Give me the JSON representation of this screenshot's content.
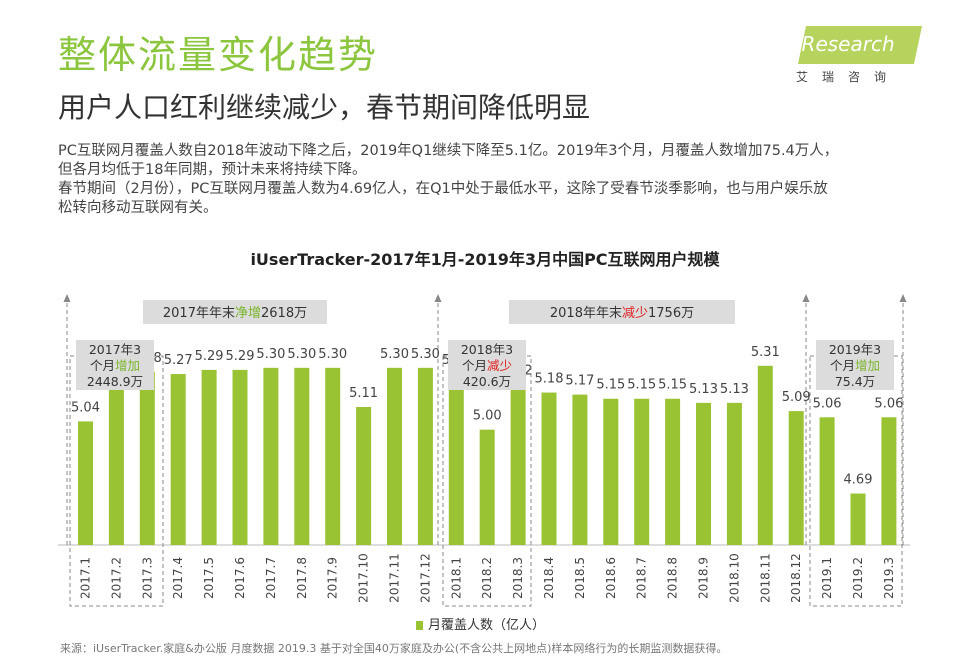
{
  "header": {
    "title": "整体流量变化趋势",
    "subtitle": "用户人口红利继续减少，春节期间降低明显",
    "description": [
      "PC互联网月覆盖人数自2018年波动下降之后，2019年Q1继续下降至5.1亿。2019年3个月，月覆盖人数增加75.4万人，",
      "但各月均低于18年同期，预计未来将持续下降。",
      "春节期间（2月份），PC互联网月覆盖人数为4.69亿人，在Q1中处于最低水平，这除了受春节淡季影响，也与用户娱乐放",
      "松转向移动互联网有关。"
    ]
  },
  "logo": {
    "text": "iResearch",
    "cn": "艾瑞咨询"
  },
  "chart_data": {
    "type": "bar",
    "title": "iUserTracker-2017年1月-2019年3月中国PC互联网用户规模",
    "categories": [
      "2017.1",
      "2017.2",
      "2017.3",
      "2017.4",
      "2017.5",
      "2017.6",
      "2017.7",
      "2017.8",
      "2017.9",
      "2017.10",
      "2017.11",
      "2017.12",
      "2018.1",
      "2018.2",
      "2018.3",
      "2018.4",
      "2018.5",
      "2018.6",
      "2018.7",
      "2018.8",
      "2018.9",
      "2018.10",
      "2018.11",
      "2018.12",
      "2019.1",
      "2019.2",
      "2019.3"
    ],
    "series": [
      {
        "name": "月覆盖人数（亿人）",
        "values": [
          5.04,
          5.26,
          5.28,
          5.27,
          5.29,
          5.29,
          5.3,
          5.3,
          5.3,
          5.11,
          5.3,
          5.3,
          5.27,
          5.0,
          5.22,
          5.18,
          5.17,
          5.15,
          5.15,
          5.15,
          5.13,
          5.13,
          5.31,
          5.09,
          5.06,
          4.69,
          5.06
        ]
      }
    ],
    "value_labels": [
      "5.04",
      "5.26",
      "5.28",
      "5.27",
      "5.29",
      "5.29",
      "5.30",
      "5.30",
      "5.30",
      "5.11",
      "5.30",
      "5.30",
      "5.27",
      "5.00",
      "5.22",
      "5.18",
      "5.17",
      "5.15",
      "5.15",
      "5.15",
      "5.13",
      "5.13",
      "5.31",
      "5.09",
      "5.06",
      "4.69",
      "5.06"
    ],
    "color": "#9ac333",
    "legend": "bottom",
    "annotations": {
      "year_boxes": [
        {
          "pre": "2017年年末",
          "hl": "净增",
          "post": "2618万",
          "hl_color": "#7ab52a"
        },
        {
          "pre": "2018年年末",
          "hl": "减少",
          "post": "1756万",
          "hl_color": "#e02020"
        }
      ],
      "quarter_boxes": [
        {
          "line1": "2017年3",
          "pre": "个月",
          "hl": "增加",
          "post": "",
          "line3": "2448.9万",
          "hl_color": "#7ab52a"
        },
        {
          "line1": "2018年3",
          "pre": "个月",
          "hl": "减少",
          "post": "",
          "line3": "420.6万",
          "hl_color": "#e02020"
        },
        {
          "line1": "2019年3",
          "pre": "个月",
          "hl": "增加",
          "post": "",
          "line3": "75.4万",
          "hl_color": "#7ab52a"
        }
      ]
    }
  },
  "legend_label": "月覆盖人数（亿人）",
  "source": "来源：iUserTracker.家庭&办公版 月度数据 2019.3 基于对全国40万家庭及办公(不含公共上网地点)样本网络行为的长期监测数据获得。"
}
